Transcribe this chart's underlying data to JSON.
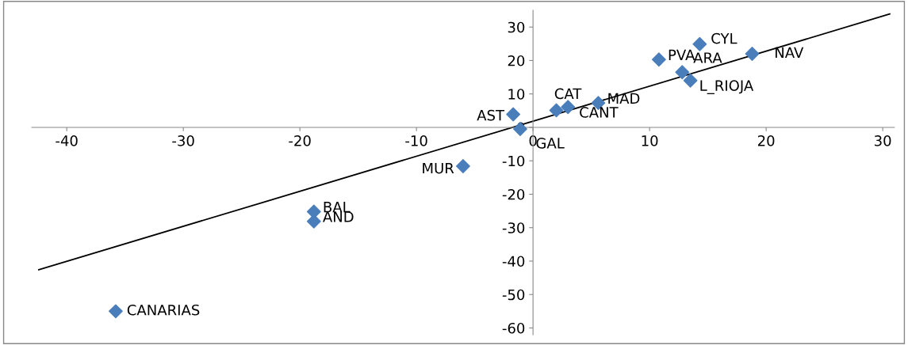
{
  "chart_data": {
    "type": "scatter",
    "series": [
      {
        "color": "#4a7ebb",
        "marker": "diamond",
        "x": [
          -35.8,
          -18.8,
          -18.8,
          -6.0,
          -1.7,
          -1.1,
          2.0,
          3.0,
          5.6,
          10.8,
          12.8,
          13.5,
          14.3,
          18.8
        ],
        "values": [
          -55,
          -25.2,
          -28.1,
          -11.6,
          3.9,
          -0.5,
          5.1,
          6.1,
          7.3,
          20.3,
          16.5,
          14.0,
          24.9,
          22.0
        ],
        "value_labels": [
          "CANARIAS",
          "BAL",
          "AND",
          "MUR",
          "AST",
          "GAL",
          "CAT",
          "CANT",
          "MAD",
          "PVA",
          "ARA",
          "L_RIOJA",
          "CYL",
          "NAV"
        ]
      },
      {
        "type": "line",
        "color": "#000000",
        "x": [
          -42.4,
          30.6
        ],
        "values": [
          -42.6,
          33.9
        ]
      }
    ],
    "xlim": [
      -43,
      31
    ],
    "xticks": [
      -40,
      -30,
      -20,
      -10,
      0,
      10,
      20,
      30
    ],
    "ylim": [
      -62,
      35
    ],
    "yticks": [
      -60,
      -50,
      -40,
      -30,
      -20,
      -10,
      0,
      10,
      20,
      30
    ],
    "grid": false,
    "legend": false
  }
}
